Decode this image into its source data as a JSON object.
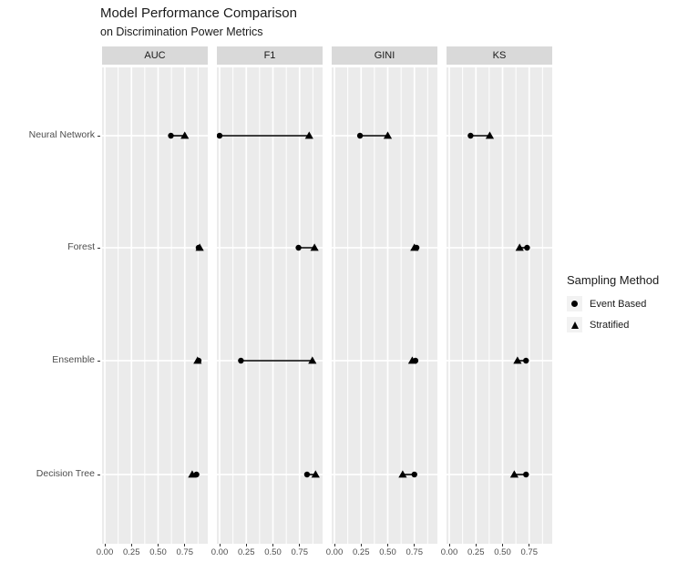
{
  "title": "Model Performance Comparison",
  "subtitle": "on Discrimination Power Metrics",
  "legend": {
    "title": "Sampling Method",
    "items": [
      {
        "label": "Event Based",
        "marker": "circle"
      },
      {
        "label": "Stratified",
        "marker": "triangle"
      }
    ]
  },
  "chart_data": {
    "type": "scatter",
    "title": "Model Performance Comparison",
    "subtitle": "on Discrimination Power Metrics",
    "facets": [
      "AUC",
      "F1",
      "GINI",
      "KS"
    ],
    "categories": [
      "Neural Network",
      "Forest",
      "Ensemble",
      "Decision Tree"
    ],
    "series": [
      {
        "name": "Event Based",
        "marker": "circle",
        "values": {
          "AUC": [
            0.62,
            0.88,
            0.88,
            0.86
          ],
          "F1": [
            0.0,
            0.74,
            0.2,
            0.82
          ],
          "GINI": [
            0.24,
            0.77,
            0.76,
            0.75
          ],
          "KS": [
            0.2,
            0.73,
            0.72,
            0.72
          ]
        }
      },
      {
        "name": "Stratified",
        "marker": "triangle",
        "values": {
          "AUC": [
            0.75,
            0.89,
            0.87,
            0.82
          ],
          "F1": [
            0.84,
            0.89,
            0.87,
            0.9
          ],
          "GINI": [
            0.5,
            0.75,
            0.73,
            0.64
          ],
          "KS": [
            0.38,
            0.66,
            0.64,
            0.61
          ]
        }
      }
    ],
    "connect_pairs": true,
    "x_ticks": [
      {
        "label": "0.00",
        "value": 0.0
      },
      {
        "label": "0.25",
        "value": 0.25
      },
      {
        "label": "0.50",
        "value": 0.5
      },
      {
        "label": "0.75",
        "value": 0.75
      }
    ],
    "x_minor": [
      0.125,
      0.375,
      0.625,
      0.875
    ],
    "xlim": [
      -0.045,
      0.945
    ],
    "xlabel": "",
    "ylabel": "",
    "grid": true,
    "legend_position": "right"
  },
  "colors": {
    "panel_bg": "#EBEBEB",
    "strip_bg": "#D9D9D9",
    "grid": "#FFFFFF",
    "marker": "#000000",
    "axis_text": "#4D4D4D",
    "tick_mark": "#333333",
    "title_text": "#1A1A1A",
    "legend_key_bg": "#F2F2F2"
  }
}
